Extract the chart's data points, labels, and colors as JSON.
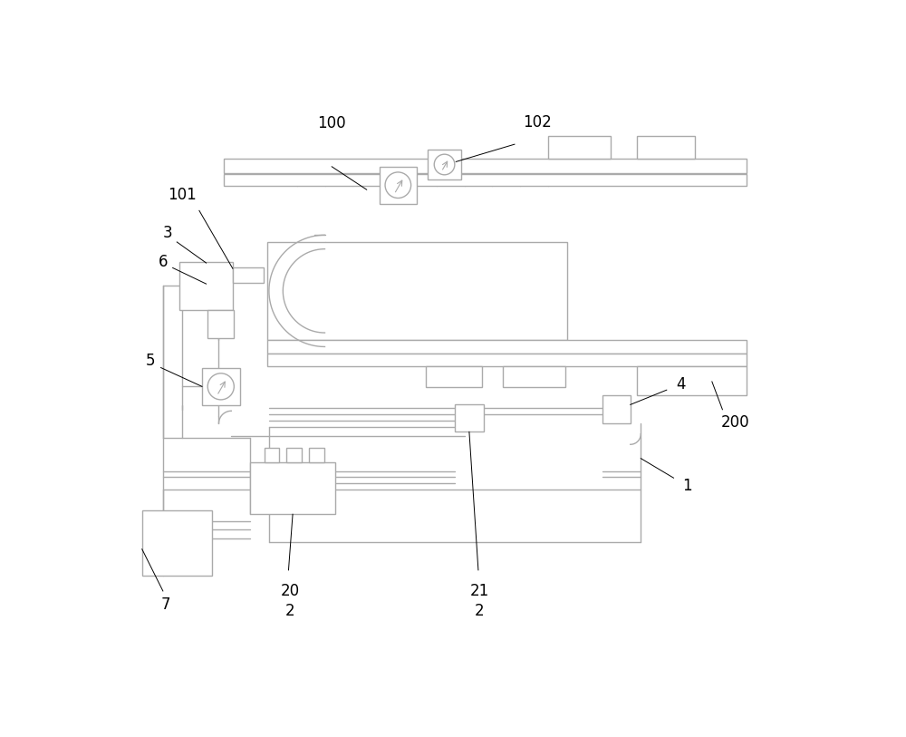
{
  "bg_color": "#ffffff",
  "line_color": "#aaaaaa",
  "label_color": "#000000",
  "lw": 1.0
}
